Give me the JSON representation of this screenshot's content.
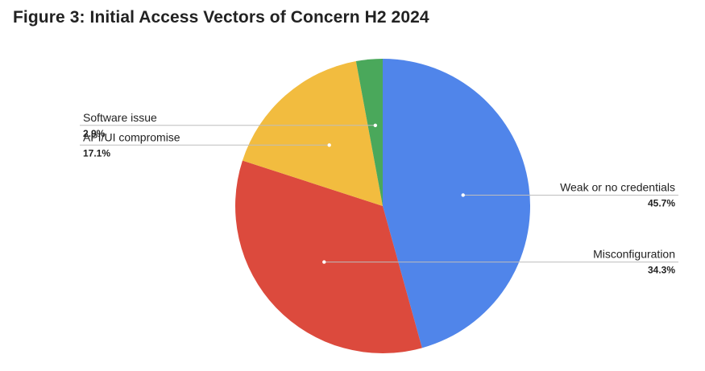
{
  "chart_data": {
    "type": "pie",
    "title": "Figure 3: Initial Access Vectors of Concern H2 2024",
    "start_angle_deg": 90,
    "direction": "clockwise",
    "slices": [
      {
        "label": "Weak or no credentials",
        "value": 45.7,
        "value_label": "45.7%",
        "color": "#5085EA",
        "label_side": "right"
      },
      {
        "label": "Misconfiguration",
        "value": 34.3,
        "value_label": "34.3%",
        "color": "#DC4A3D",
        "label_side": "right"
      },
      {
        "label": "API/UI compromise",
        "value": 17.1,
        "value_label": "17.1%",
        "color": "#F2BC3F",
        "label_side": "left"
      },
      {
        "label": "Software issue",
        "value": 2.9,
        "value_label": "2.9%",
        "color": "#4AA85B",
        "label_side": "left"
      }
    ]
  }
}
